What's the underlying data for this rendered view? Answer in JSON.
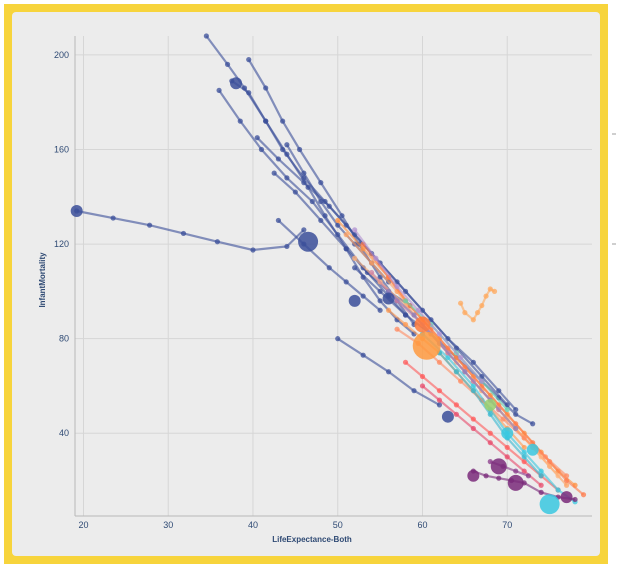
{
  "chart_data": {
    "type": "scatter",
    "xlabel": "LifeExpectance-Both",
    "ylabel": "InfantMortality",
    "xlim": [
      19,
      80
    ],
    "ylim": [
      5,
      208
    ],
    "xticks": [
      20,
      30,
      40,
      50,
      60,
      70
    ],
    "yticks": [
      40,
      80,
      120,
      160,
      200
    ],
    "xtick_labels": [
      "20",
      "30",
      "40",
      "50",
      "60",
      "70"
    ],
    "ytick_labels": [
      "40",
      "80",
      "120",
      "160",
      "200"
    ],
    "grid": true,
    "legend": "none",
    "series": [
      {
        "color": "#3b4f9a",
        "points": [
          [
            19.2,
            134
          ],
          [
            23.5,
            131
          ],
          [
            27.8,
            128
          ],
          [
            31.8,
            124.5
          ],
          [
            35.8,
            121
          ],
          [
            40,
            117.5
          ],
          [
            44,
            119
          ],
          [
            46,
            126
          ]
        ]
      },
      {
        "color": "#3b4f9a",
        "points": [
          [
            34.5,
            208
          ],
          [
            37,
            196
          ],
          [
            39,
            186
          ],
          [
            41.5,
            172
          ],
          [
            44,
            158
          ],
          [
            46.5,
            144
          ],
          [
            48.5,
            132
          ],
          [
            51,
            118
          ],
          [
            53,
            106
          ],
          [
            55,
            96
          ],
          [
            57,
            88
          ],
          [
            59,
            82
          ]
        ]
      },
      {
        "color": "#3b4f9a",
        "points": [
          [
            39.5,
            198
          ],
          [
            41.5,
            186
          ],
          [
            43.5,
            172
          ],
          [
            45.5,
            160
          ],
          [
            48,
            146
          ],
          [
            50.5,
            132
          ],
          [
            52.5,
            120
          ],
          [
            55,
            106
          ],
          [
            57,
            96
          ],
          [
            59,
            86
          ]
        ]
      },
      {
        "color": "#3b4f9a",
        "points": [
          [
            36,
            185
          ],
          [
            38.5,
            172
          ],
          [
            41,
            160
          ],
          [
            44,
            148
          ],
          [
            47,
            138
          ],
          [
            50,
            124
          ],
          [
            53,
            110
          ],
          [
            56,
            98
          ],
          [
            58,
            90
          ]
        ]
      },
      {
        "color": "#3b4f9a",
        "points": [
          [
            37.5,
            189
          ],
          [
            39.5,
            184
          ],
          [
            41.5,
            172
          ],
          [
            43.5,
            160
          ],
          [
            46,
            148
          ],
          [
            48.5,
            138
          ],
          [
            51,
            128
          ],
          [
            54,
            116
          ],
          [
            57,
            104
          ],
          [
            60,
            92
          ],
          [
            63,
            80
          ],
          [
            66,
            70
          ],
          [
            69,
            58
          ],
          [
            71,
            50
          ]
        ]
      },
      {
        "color": "#3b4f9a",
        "points": [
          [
            40.5,
            165
          ],
          [
            43,
            156
          ],
          [
            46,
            146
          ],
          [
            49,
            136
          ],
          [
            52,
            124
          ],
          [
            55,
            112
          ],
          [
            58,
            100
          ],
          [
            61,
            88
          ],
          [
            64,
            76
          ],
          [
            67,
            64
          ],
          [
            70,
            52
          ]
        ]
      },
      {
        "color": "#3b4f9a",
        "points": [
          [
            42.5,
            150
          ],
          [
            45,
            142
          ],
          [
            48,
            130
          ],
          [
            51,
            118
          ],
          [
            53.5,
            108
          ],
          [
            56,
            100
          ],
          [
            58.5,
            94
          ]
        ]
      },
      {
        "color": "#3b4f9a",
        "points": [
          [
            43,
            130
          ],
          [
            46,
            120
          ],
          [
            49,
            110
          ],
          [
            51,
            104
          ],
          [
            53,
            98
          ],
          [
            55,
            92
          ]
        ]
      },
      {
        "color": "#3b4f9a",
        "points": [
          [
            52,
            110
          ],
          [
            55,
            100
          ],
          [
            58,
            90
          ],
          [
            61,
            82
          ],
          [
            64,
            72
          ],
          [
            67,
            62
          ],
          [
            69,
            55
          ],
          [
            71,
            48
          ],
          [
            73,
            44
          ]
        ]
      },
      {
        "color": "#3b4f9a",
        "points": [
          [
            50,
            80
          ],
          [
            53,
            73
          ],
          [
            56,
            66
          ],
          [
            59,
            58
          ],
          [
            62,
            52
          ]
        ]
      },
      {
        "color": "#3b4f9a",
        "points": [
          [
            44,
            162
          ],
          [
            46,
            150
          ],
          [
            48,
            138
          ],
          [
            50,
            128
          ],
          [
            52,
            120
          ],
          [
            54,
            112
          ],
          [
            56,
            104
          ]
        ]
      },
      {
        "color": "#ff9040",
        "points": [
          [
            50,
            130
          ],
          [
            53,
            118
          ],
          [
            56,
            106
          ],
          [
            58,
            96
          ],
          [
            60,
            88
          ],
          [
            62,
            80
          ],
          [
            64,
            72
          ],
          [
            66,
            64
          ],
          [
            68,
            56
          ],
          [
            70,
            48
          ],
          [
            72,
            40
          ],
          [
            74,
            32
          ],
          [
            76,
            24
          ],
          [
            78,
            18
          ]
        ]
      },
      {
        "color": "#ffa060",
        "points": [
          [
            51,
            124
          ],
          [
            54,
            112
          ],
          [
            57,
            100
          ],
          [
            59,
            90
          ],
          [
            61,
            82
          ],
          [
            63,
            74
          ],
          [
            65,
            66
          ],
          [
            67,
            58
          ],
          [
            69,
            50
          ],
          [
            71,
            42
          ],
          [
            73,
            34
          ],
          [
            75,
            26
          ],
          [
            77,
            18
          ]
        ]
      },
      {
        "color": "#ff7a4a",
        "points": [
          [
            53,
            120
          ],
          [
            56,
            106
          ],
          [
            58.5,
            94
          ],
          [
            61,
            84
          ],
          [
            63,
            76
          ],
          [
            65,
            68
          ],
          [
            67,
            60
          ],
          [
            69,
            52
          ],
          [
            71,
            44
          ],
          [
            73,
            36
          ],
          [
            75,
            28
          ],
          [
            77,
            20
          ],
          [
            79,
            14
          ]
        ]
      },
      {
        "color": "#ffb27a",
        "points": [
          [
            52,
            114
          ],
          [
            55,
            104
          ],
          [
            58,
            94
          ],
          [
            60,
            86
          ],
          [
            62,
            78
          ],
          [
            64,
            70
          ],
          [
            66,
            62
          ],
          [
            68,
            54
          ],
          [
            70,
            46
          ],
          [
            72,
            38
          ],
          [
            74,
            30
          ],
          [
            76,
            22
          ]
        ]
      },
      {
        "color": "#ff5a5a",
        "points": [
          [
            58,
            70
          ],
          [
            60,
            64
          ],
          [
            62,
            58
          ],
          [
            64,
            52
          ],
          [
            66,
            46
          ],
          [
            68,
            40
          ],
          [
            70,
            34
          ],
          [
            72,
            28
          ],
          [
            74,
            22
          ],
          [
            76,
            16
          ]
        ]
      },
      {
        "color": "#e84a6a",
        "points": [
          [
            60,
            60
          ],
          [
            62,
            54
          ],
          [
            64,
            48
          ],
          [
            66,
            42
          ],
          [
            68,
            36
          ],
          [
            70,
            30
          ],
          [
            72,
            24
          ],
          [
            74,
            18
          ]
        ]
      },
      {
        "color": "#ff9a50",
        "points": [
          [
            56,
            92
          ],
          [
            58,
            86
          ],
          [
            60,
            80
          ],
          [
            62,
            74
          ],
          [
            64,
            66
          ],
          [
            66,
            58
          ],
          [
            68,
            50
          ],
          [
            70,
            42
          ],
          [
            72,
            34
          ]
        ]
      },
      {
        "color": "#ff8a60",
        "points": [
          [
            57,
            84
          ],
          [
            59.5,
            78
          ],
          [
            62,
            70
          ],
          [
            64.5,
            62
          ],
          [
            67,
            54
          ],
          [
            69.5,
            46
          ],
          [
            72,
            38
          ],
          [
            74.5,
            30
          ],
          [
            77,
            22
          ]
        ]
      },
      {
        "color": "#ffa85c",
        "points": [
          [
            64.5,
            95
          ],
          [
            65,
            91
          ],
          [
            66,
            88
          ],
          [
            66.5,
            91
          ],
          [
            67,
            94
          ],
          [
            67.5,
            98
          ],
          [
            68,
            101
          ],
          [
            68.5,
            100
          ]
        ]
      },
      {
        "color": "#39c8e0",
        "points": [
          [
            60,
            82
          ],
          [
            63,
            72
          ],
          [
            66,
            60
          ],
          [
            68,
            50
          ],
          [
            70,
            40
          ],
          [
            72,
            32
          ],
          [
            74,
            24
          ],
          [
            76,
            16
          ],
          [
            78,
            11
          ]
        ]
      },
      {
        "color": "#36b8d0",
        "points": [
          [
            62,
            74
          ],
          [
            64,
            66
          ],
          [
            66,
            58
          ],
          [
            68,
            48
          ],
          [
            70,
            38
          ],
          [
            72,
            30
          ],
          [
            74,
            22
          ]
        ]
      },
      {
        "color": "#66d0b0",
        "points": [
          [
            58,
            96
          ],
          [
            61,
            86
          ],
          [
            64,
            74
          ],
          [
            67,
            62
          ],
          [
            70,
            50
          ]
        ]
      },
      {
        "color": "#b090d0",
        "points": [
          [
            52,
            126
          ],
          [
            54.5,
            114
          ],
          [
            57,
            102
          ],
          [
            59.5,
            92
          ],
          [
            62,
            82
          ],
          [
            64.5,
            72
          ],
          [
            67,
            62
          ]
        ]
      },
      {
        "color": "#d080a0",
        "points": [
          [
            54,
            108
          ],
          [
            57,
            96
          ],
          [
            60,
            86
          ],
          [
            63,
            74
          ],
          [
            66,
            62
          ],
          [
            69,
            50
          ]
        ]
      },
      {
        "color": "#8a7fc0",
        "points": [
          [
            56,
            100
          ],
          [
            59,
            90
          ],
          [
            62,
            78
          ],
          [
            65,
            66
          ],
          [
            68,
            54
          ],
          [
            71,
            42
          ]
        ]
      },
      {
        "color": "#7a2a7a",
        "points": [
          [
            66,
            24
          ],
          [
            67.5,
            22
          ],
          [
            69,
            21
          ],
          [
            70.5,
            20
          ],
          [
            72,
            19
          ],
          [
            74,
            15
          ],
          [
            76,
            13
          ],
          [
            78,
            12
          ]
        ]
      },
      {
        "color": "#8a3a8a",
        "points": [
          [
            68,
            28
          ],
          [
            69.5,
            26
          ],
          [
            71,
            24
          ],
          [
            72.5,
            22
          ]
        ]
      }
    ],
    "bubbles": [
      {
        "x": 60.5,
        "y": 77,
        "size": 6,
        "color": "#ff9a40"
      },
      {
        "x": 46.5,
        "y": 121,
        "size": 4,
        "color": "#3b4f9a"
      },
      {
        "x": 75,
        "y": 10,
        "size": 4,
        "color": "#39c8e0"
      },
      {
        "x": 69,
        "y": 26,
        "size": 3,
        "color": "#7a2a7a"
      },
      {
        "x": 71,
        "y": 19,
        "size": 3,
        "color": "#7a2a7a"
      },
      {
        "x": 66,
        "y": 22,
        "size": 2,
        "color": "#7a2a7a"
      },
      {
        "x": 73,
        "y": 33,
        "size": 2,
        "color": "#39c8e0"
      },
      {
        "x": 70,
        "y": 40,
        "size": 2,
        "color": "#39c8e0"
      },
      {
        "x": 68,
        "y": 52,
        "size": 2,
        "color": "#9ad070"
      },
      {
        "x": 60,
        "y": 86,
        "size": 3,
        "color": "#ff7a3a"
      },
      {
        "x": 56,
        "y": 97,
        "size": 2,
        "color": "#3b4f9a"
      },
      {
        "x": 38,
        "y": 188,
        "size": 2,
        "color": "#3b4f9a"
      },
      {
        "x": 19.2,
        "y": 134,
        "size": 2,
        "color": "#3b4f9a"
      },
      {
        "x": 52,
        "y": 96,
        "size": 2,
        "color": "#3b4f9a"
      },
      {
        "x": 63,
        "y": 47,
        "size": 2,
        "color": "#3b4f9a"
      },
      {
        "x": 77,
        "y": 13,
        "size": 2,
        "color": "#7a2a7a"
      }
    ]
  }
}
